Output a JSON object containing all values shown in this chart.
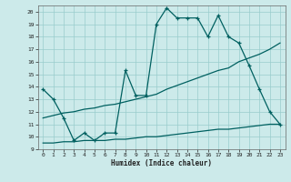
{
  "xlabel": "Humidex (Indice chaleur)",
  "bg_color": "#cceaea",
  "line_color": "#006060",
  "grid_color": "#99cccc",
  "xlim": [
    -0.5,
    23.5
  ],
  "ylim": [
    9,
    20.5
  ],
  "yticks": [
    9,
    10,
    11,
    12,
    13,
    14,
    15,
    16,
    17,
    18,
    19,
    20
  ],
  "xticks": [
    0,
    1,
    2,
    3,
    4,
    5,
    6,
    7,
    8,
    9,
    10,
    11,
    12,
    13,
    14,
    15,
    16,
    17,
    18,
    19,
    20,
    21,
    22,
    23
  ],
  "line1_x": [
    0,
    1,
    2,
    3,
    4,
    5,
    6,
    7,
    8,
    9,
    10,
    11,
    12,
    13,
    14,
    15,
    16,
    17,
    18,
    19,
    20,
    21,
    22,
    23
  ],
  "line1_y": [
    13.8,
    13.0,
    11.5,
    9.7,
    10.3,
    9.7,
    10.3,
    10.3,
    15.3,
    13.3,
    13.3,
    19.0,
    20.3,
    19.5,
    19.5,
    19.5,
    18.0,
    19.7,
    18.0,
    17.5,
    15.7,
    13.8,
    12.0,
    11.0
  ],
  "line2_x": [
    0,
    1,
    2,
    3,
    4,
    5,
    6,
    7,
    8,
    9,
    10,
    11,
    12,
    13,
    14,
    15,
    16,
    17,
    18,
    19,
    20,
    21,
    22,
    23
  ],
  "line2_y": [
    11.5,
    11.7,
    11.9,
    12.0,
    12.2,
    12.3,
    12.5,
    12.6,
    12.8,
    13.0,
    13.2,
    13.4,
    13.8,
    14.1,
    14.4,
    14.7,
    15.0,
    15.3,
    15.5,
    16.0,
    16.3,
    16.6,
    17.0,
    17.5
  ],
  "line3_x": [
    0,
    1,
    2,
    3,
    4,
    5,
    6,
    7,
    8,
    9,
    10,
    11,
    12,
    13,
    14,
    15,
    16,
    17,
    18,
    19,
    20,
    21,
    22,
    23
  ],
  "line3_y": [
    9.5,
    9.5,
    9.6,
    9.6,
    9.7,
    9.7,
    9.7,
    9.8,
    9.8,
    9.9,
    10.0,
    10.0,
    10.1,
    10.2,
    10.3,
    10.4,
    10.5,
    10.6,
    10.6,
    10.7,
    10.8,
    10.9,
    11.0,
    11.0
  ]
}
